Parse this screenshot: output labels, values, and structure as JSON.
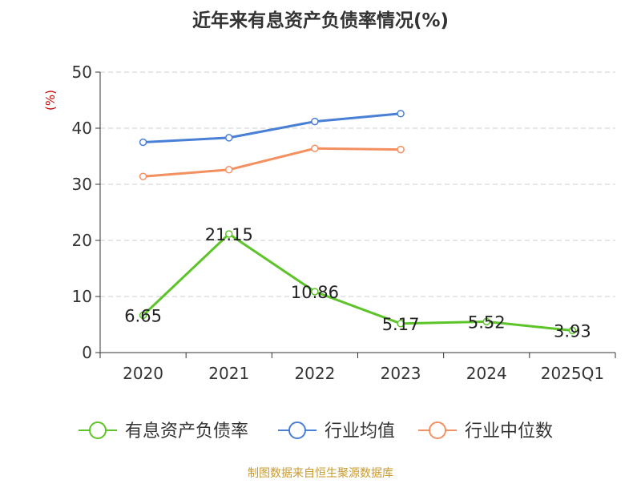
{
  "chart_data": {
    "type": "line",
    "title": "近年来有息资产负债率情况(%)",
    "ylabel": "(%)",
    "xlabel": "",
    "categories": [
      "2020",
      "2021",
      "2022",
      "2023",
      "2024",
      "2025Q1"
    ],
    "ylim": [
      0,
      50
    ],
    "yticks": [
      "0",
      "10",
      "20",
      "30",
      "40",
      "50"
    ],
    "grid": "horizontal dashed",
    "legend_position": "bottom",
    "series": [
      {
        "name": "有息资产负债率",
        "color": "#5cc428",
        "values": [
          6.65,
          21.15,
          10.86,
          5.17,
          5.52,
          3.93
        ],
        "labels": [
          "6.65",
          "21.15",
          "10.86",
          "5.17",
          "5.52",
          "3.93"
        ]
      },
      {
        "name": "行业均值",
        "color": "#4a7fd6",
        "values": [
          37.5,
          38.3,
          41.2,
          42.6,
          null,
          null
        ]
      },
      {
        "name": "行业中位数",
        "color": "#f49060",
        "values": [
          31.4,
          32.6,
          36.4,
          36.2,
          null,
          null
        ]
      }
    ],
    "source": "制图数据来自恒生聚源数据库"
  }
}
